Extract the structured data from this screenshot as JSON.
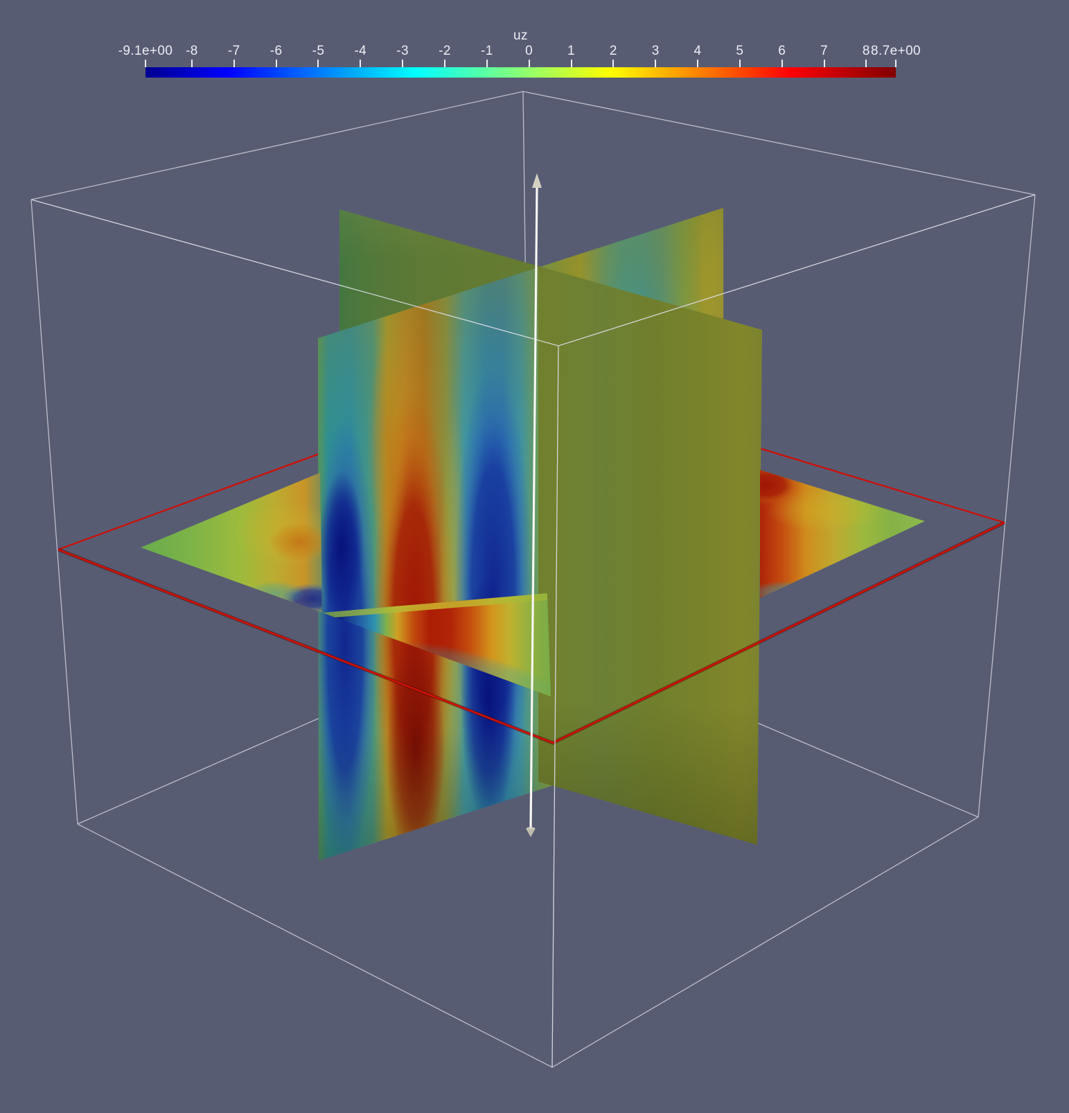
{
  "view": {
    "background_color": "#575c73",
    "outline_color": "#d9dbe4",
    "widget_outline_color": "#cc1007",
    "widget_axis_color": "#f2f1ec",
    "widget_cone_color": "#d4d1c2",
    "label_color": "#eceef4"
  },
  "colorbar": {
    "title": "uz",
    "range_min": -9.1,
    "range_max": 8.7,
    "tick_labels": [
      "-9.1e+00",
      "-8",
      "-7",
      "-6",
      "-5",
      "-4",
      "-3",
      "-2",
      "-1",
      "0",
      "1",
      "2",
      "3",
      "4",
      "5",
      "6",
      "7",
      "8",
      "8.7e+00"
    ],
    "tick_values": [
      -9.1,
      -8,
      -7,
      -6,
      -5,
      -4,
      -3,
      -2,
      -1,
      0,
      1,
      2,
      3,
      4,
      5,
      6,
      7,
      8,
      8.7
    ],
    "colormap": {
      "name": "jet",
      "stops": [
        {
          "t": 0.0,
          "color": "#00008f"
        },
        {
          "t": 0.11,
          "color": "#0000ff"
        },
        {
          "t": 0.36,
          "color": "#00ffff"
        },
        {
          "t": 0.62,
          "color": "#ffff00"
        },
        {
          "t": 0.86,
          "color": "#ff0000"
        },
        {
          "t": 1.0,
          "color": "#800000"
        }
      ]
    }
  },
  "chart_data": {
    "type": "heatmap",
    "title": "uz",
    "field_name": "uz",
    "scalar_range": [
      -9.1,
      8.7
    ],
    "colormap": "jet",
    "colorbar_ticks": [
      -9.1,
      -8,
      -7,
      -6,
      -5,
      -4,
      -3,
      -2,
      -1,
      0,
      1,
      2,
      3,
      4,
      5,
      6,
      7,
      8,
      8.7
    ],
    "scene_description": "Three orthogonal slice planes colored by the uz field inside a white wireframe outline box; a red implicit-plane widget rectangle surrounds the horizontal slice and a vertical white line widget with arrow cones marks the slice normal axis."
  }
}
